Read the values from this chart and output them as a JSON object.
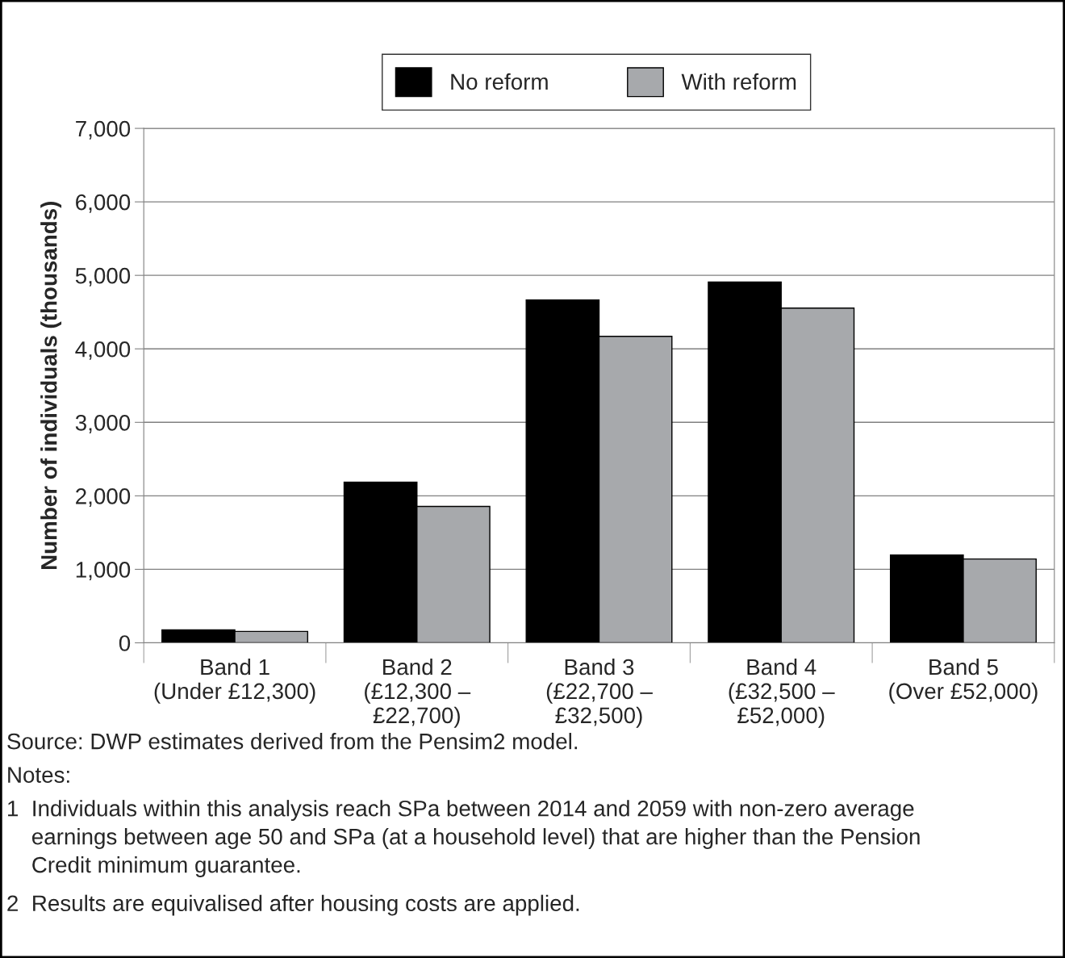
{
  "chart_data": {
    "type": "bar",
    "ylabel": "Number of individuals (thousands)",
    "categories": [
      "Band 1\n(Under £12,300)",
      "Band 2\n(£12,300 –\n£22,700)",
      "Band 3\n(£22,700 –\n£32,500)",
      "Band 4\n(£32,500 –\n£52,000)",
      "Band 5\n(Over £52,000)"
    ],
    "series": [
      {
        "name": "No reform",
        "color": "#000000",
        "values": [
          175,
          2185,
          4665,
          4910,
          1195
        ]
      },
      {
        "name": "With reform",
        "color": "#a7a9ac",
        "values": [
          155,
          1855,
          4170,
          4555,
          1140
        ]
      }
    ],
    "ylim": [
      0,
      7000
    ],
    "yticks": [
      {
        "value": 0,
        "label": "0"
      },
      {
        "value": 1000,
        "label": "1,000"
      },
      {
        "value": 2000,
        "label": "2,000"
      },
      {
        "value": 3000,
        "label": "3,000"
      },
      {
        "value": 4000,
        "label": "4,000"
      },
      {
        "value": 5000,
        "label": "5,000"
      },
      {
        "value": 6000,
        "label": "6,000"
      },
      {
        "value": 7000,
        "label": "7,000"
      }
    ],
    "grid": "y",
    "legend": "top",
    "annotations": [
      "Source: DWP estimates derived from the Pensim2 model.",
      "Notes:",
      "1  Individuals within this analysis reach SPa between 2014 and 2059 with non-zero average\n    earnings between age 50 and SPa (at a household level) that are higher than the Pension\n    Credit minimum guarantee.",
      "2  Results are equivalised after housing costs are applied."
    ]
  }
}
